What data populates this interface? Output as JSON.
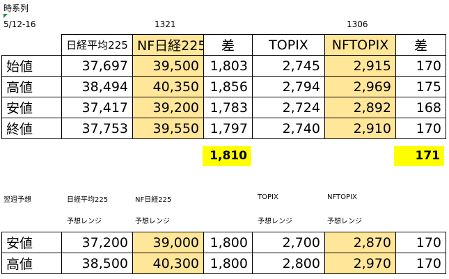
{
  "sheet": {
    "title": "時系列",
    "period": "5/12-16",
    "code_1321": "1321",
    "code_1306": "1306"
  },
  "main_table": {
    "headers": [
      "",
      "日経平均225",
      "NF日経225",
      "差",
      "TOPIX",
      "NFTOPIX",
      "差"
    ],
    "rows": [
      {
        "label": "始値",
        "n225": "37,697",
        "nf225": "39,500",
        "diff1": "1,803",
        "topix": "2,745",
        "nftopix": "2,915",
        "diff2": "170"
      },
      {
        "label": "高値",
        "n225": "38,494",
        "nf225": "40,350",
        "diff1": "1,856",
        "topix": "2,794",
        "nftopix": "2,969",
        "diff2": "175"
      },
      {
        "label": "安値",
        "n225": "37,417",
        "nf225": "39,200",
        "diff1": "1,783",
        "topix": "2,724",
        "nftopix": "2,892",
        "diff2": "168"
      },
      {
        "label": "終値",
        "n225": "37,753",
        "nf225": "39,550",
        "diff1": "1,797",
        "topix": "2,740",
        "nftopix": "2,910",
        "diff2": "170"
      }
    ],
    "avg_diff1": "1,810",
    "avg_diff2": "171"
  },
  "forecast": {
    "title": "翌週予想",
    "col_n225": "日経平均225",
    "col_nf225": "NF日経225",
    "col_topix": "TOPIX",
    "col_nftopix": "NFTOPIX",
    "range_label": "予想レンジ",
    "rows": [
      {
        "label": "安値",
        "n225": "37,200",
        "nf225": "39,000",
        "diff1": "1,800",
        "topix": "2,700",
        "nftopix": "2,870",
        "diff2": "170"
      },
      {
        "label": "高値",
        "n225": "38,500",
        "nf225": "40,300",
        "diff1": "1,800",
        "topix": "2,800",
        "nftopix": "2,970",
        "diff2": "170"
      }
    ]
  },
  "colors": {
    "highlight_orange": "#ffe699",
    "highlight_yellow": "#ffff00"
  }
}
